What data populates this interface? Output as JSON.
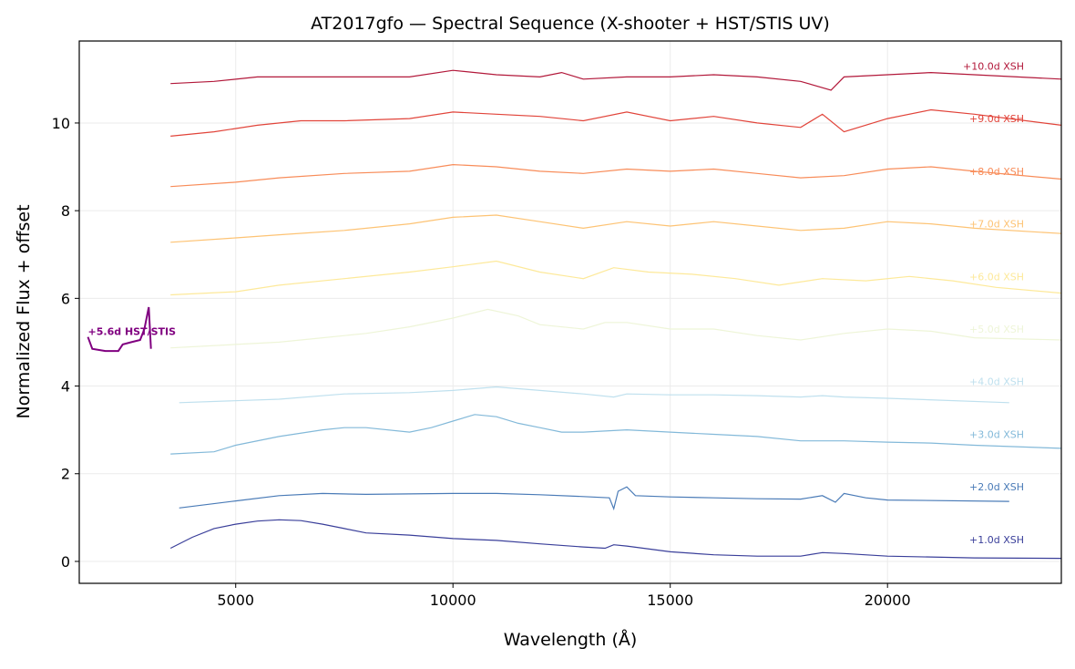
{
  "chart_data": {
    "type": "line",
    "title": "AT2017gfo — Spectral Sequence (X-shooter + HST/STIS UV)",
    "xlabel": "Wavelength (Å)",
    "ylabel": "Normalized Flux + offset",
    "xlim": [
      1400,
      24000
    ],
    "ylim": [
      -0.5,
      11.87
    ],
    "xticks": [
      5000,
      10000,
      15000,
      20000
    ],
    "yticks": [
      0,
      2,
      4,
      6,
      8,
      10
    ],
    "grid": true,
    "legend": "none (inline labels at right)",
    "series": [
      {
        "name": "+1.0d XSH",
        "color": "#3a3f9a",
        "label_y": 0.5,
        "points": [
          [
            3500,
            0.3
          ],
          [
            4000,
            0.55
          ],
          [
            4500,
            0.75
          ],
          [
            5000,
            0.85
          ],
          [
            5500,
            0.92
          ],
          [
            6000,
            0.95
          ],
          [
            6500,
            0.93
          ],
          [
            7000,
            0.85
          ],
          [
            7500,
            0.75
          ],
          [
            8000,
            0.65
          ],
          [
            9000,
            0.6
          ],
          [
            10000,
            0.52
          ],
          [
            11000,
            0.48
          ],
          [
            12000,
            0.4
          ],
          [
            13000,
            0.33
          ],
          [
            13500,
            0.3
          ],
          [
            13700,
            0.38
          ],
          [
            14000,
            0.35
          ],
          [
            15000,
            0.22
          ],
          [
            16000,
            0.15
          ],
          [
            17000,
            0.12
          ],
          [
            18000,
            0.12
          ],
          [
            18500,
            0.2
          ],
          [
            19000,
            0.18
          ],
          [
            20000,
            0.12
          ],
          [
            22000,
            0.08
          ],
          [
            24000,
            0.07
          ]
        ]
      },
      {
        "name": "+2.0d XSH",
        "color": "#4a7bb7",
        "label_y": 1.7,
        "points": [
          [
            3700,
            1.22
          ],
          [
            5000,
            1.38
          ],
          [
            6000,
            1.5
          ],
          [
            7000,
            1.55
          ],
          [
            8000,
            1.53
          ],
          [
            10000,
            1.55
          ],
          [
            11000,
            1.55
          ],
          [
            12000,
            1.52
          ],
          [
            13000,
            1.48
          ],
          [
            13600,
            1.45
          ],
          [
            13700,
            1.2
          ],
          [
            13800,
            1.6
          ],
          [
            14000,
            1.7
          ],
          [
            14200,
            1.5
          ],
          [
            15000,
            1.47
          ],
          [
            16000,
            1.45
          ],
          [
            17000,
            1.43
          ],
          [
            18000,
            1.42
          ],
          [
            18500,
            1.5
          ],
          [
            18800,
            1.35
          ],
          [
            19000,
            1.55
          ],
          [
            19500,
            1.45
          ],
          [
            20000,
            1.4
          ],
          [
            22800,
            1.37
          ]
        ]
      },
      {
        "name": "+3.0d XSH",
        "color": "#83b9d9",
        "label_y": 2.9,
        "points": [
          [
            3500,
            2.45
          ],
          [
            4500,
            2.5
          ],
          [
            5000,
            2.65
          ],
          [
            6000,
            2.85
          ],
          [
            7000,
            3.0
          ],
          [
            7500,
            3.05
          ],
          [
            8000,
            3.05
          ],
          [
            9000,
            2.95
          ],
          [
            9500,
            3.05
          ],
          [
            10000,
            3.2
          ],
          [
            10500,
            3.35
          ],
          [
            11000,
            3.3
          ],
          [
            11500,
            3.15
          ],
          [
            12000,
            3.05
          ],
          [
            12500,
            2.95
          ],
          [
            13000,
            2.95
          ],
          [
            14000,
            3.0
          ],
          [
            15000,
            2.95
          ],
          [
            16000,
            2.9
          ],
          [
            17000,
            2.85
          ],
          [
            18000,
            2.75
          ],
          [
            19000,
            2.75
          ],
          [
            20000,
            2.72
          ],
          [
            21000,
            2.7
          ],
          [
            22000,
            2.65
          ],
          [
            24000,
            2.58
          ]
        ]
      },
      {
        "name": "+4.0d XSH",
        "color": "#bfe0ee",
        "label_y": 4.1,
        "points": [
          [
            3700,
            3.62
          ],
          [
            6000,
            3.7
          ],
          [
            7500,
            3.82
          ],
          [
            9000,
            3.85
          ],
          [
            10000,
            3.9
          ],
          [
            11000,
            3.98
          ],
          [
            12000,
            3.9
          ],
          [
            13000,
            3.82
          ],
          [
            13700,
            3.75
          ],
          [
            14000,
            3.82
          ],
          [
            15000,
            3.8
          ],
          [
            16000,
            3.8
          ],
          [
            17000,
            3.78
          ],
          [
            18000,
            3.75
          ],
          [
            18500,
            3.78
          ],
          [
            19000,
            3.75
          ],
          [
            20000,
            3.72
          ],
          [
            22800,
            3.62
          ]
        ]
      },
      {
        "name": "+5.0d XSH",
        "color": "#eef5d8",
        "label_y": 5.3,
        "points": [
          [
            3500,
            4.87
          ],
          [
            5000,
            4.95
          ],
          [
            6000,
            5.0
          ],
          [
            7000,
            5.1
          ],
          [
            8000,
            5.2
          ],
          [
            9000,
            5.35
          ],
          [
            10000,
            5.55
          ],
          [
            10800,
            5.75
          ],
          [
            11500,
            5.6
          ],
          [
            12000,
            5.4
          ],
          [
            13000,
            5.3
          ],
          [
            13500,
            5.45
          ],
          [
            14000,
            5.45
          ],
          [
            15000,
            5.3
          ],
          [
            16000,
            5.3
          ],
          [
            17000,
            5.15
          ],
          [
            18000,
            5.05
          ],
          [
            19000,
            5.2
          ],
          [
            20000,
            5.3
          ],
          [
            21000,
            5.25
          ],
          [
            22000,
            5.1
          ],
          [
            24000,
            5.05
          ]
        ]
      },
      {
        "name": "+6.0d XSH",
        "color": "#fde99a",
        "label_y": 6.5,
        "points": [
          [
            3500,
            6.08
          ],
          [
            5000,
            6.15
          ],
          [
            6000,
            6.3
          ],
          [
            7500,
            6.45
          ],
          [
            9000,
            6.6
          ],
          [
            10000,
            6.72
          ],
          [
            11000,
            6.85
          ],
          [
            12000,
            6.6
          ],
          [
            13000,
            6.45
          ],
          [
            13700,
            6.7
          ],
          [
            14500,
            6.6
          ],
          [
            15500,
            6.55
          ],
          [
            16500,
            6.45
          ],
          [
            17500,
            6.3
          ],
          [
            18500,
            6.45
          ],
          [
            19500,
            6.4
          ],
          [
            20500,
            6.5
          ],
          [
            21500,
            6.4
          ],
          [
            22500,
            6.25
          ],
          [
            24000,
            6.12
          ]
        ]
      },
      {
        "name": "+7.0d XSH",
        "color": "#fdc374",
        "label_y": 7.7,
        "points": [
          [
            3500,
            7.28
          ],
          [
            5000,
            7.38
          ],
          [
            6000,
            7.45
          ],
          [
            7500,
            7.55
          ],
          [
            9000,
            7.7
          ],
          [
            10000,
            7.85
          ],
          [
            11000,
            7.9
          ],
          [
            12000,
            7.75
          ],
          [
            13000,
            7.6
          ],
          [
            14000,
            7.75
          ],
          [
            15000,
            7.65
          ],
          [
            16000,
            7.75
          ],
          [
            17000,
            7.65
          ],
          [
            18000,
            7.55
          ],
          [
            19000,
            7.6
          ],
          [
            20000,
            7.75
          ],
          [
            21000,
            7.7
          ],
          [
            22000,
            7.6
          ],
          [
            24000,
            7.48
          ]
        ]
      },
      {
        "name": "+8.0d XSH",
        "color": "#f88c59",
        "label_y": 8.9,
        "points": [
          [
            3500,
            8.55
          ],
          [
            5000,
            8.65
          ],
          [
            6000,
            8.75
          ],
          [
            7500,
            8.85
          ],
          [
            9000,
            8.9
          ],
          [
            10000,
            9.05
          ],
          [
            11000,
            9.0
          ],
          [
            12000,
            8.9
          ],
          [
            13000,
            8.85
          ],
          [
            14000,
            8.95
          ],
          [
            15000,
            8.9
          ],
          [
            16000,
            8.95
          ],
          [
            17000,
            8.85
          ],
          [
            18000,
            8.75
          ],
          [
            19000,
            8.8
          ],
          [
            20000,
            8.95
          ],
          [
            21000,
            9.0
          ],
          [
            22000,
            8.9
          ],
          [
            24000,
            8.72
          ]
        ]
      },
      {
        "name": "+9.0d XSH",
        "color": "#e1443a",
        "label_y": 10.1,
        "points": [
          [
            3500,
            9.7
          ],
          [
            4500,
            9.8
          ],
          [
            5500,
            9.95
          ],
          [
            6500,
            10.05
          ],
          [
            7500,
            10.05
          ],
          [
            9000,
            10.1
          ],
          [
            10000,
            10.25
          ],
          [
            11000,
            10.2
          ],
          [
            12000,
            10.15
          ],
          [
            13000,
            10.05
          ],
          [
            14000,
            10.25
          ],
          [
            15000,
            10.05
          ],
          [
            16000,
            10.15
          ],
          [
            17000,
            10.0
          ],
          [
            18000,
            9.9
          ],
          [
            18500,
            10.2
          ],
          [
            19000,
            9.8
          ],
          [
            20000,
            10.1
          ],
          [
            21000,
            10.3
          ],
          [
            22000,
            10.2
          ],
          [
            24000,
            9.95
          ]
        ]
      },
      {
        "name": "+10.0d XSH",
        "color": "#b2183a",
        "label_y": 11.3,
        "points": [
          [
            3500,
            10.9
          ],
          [
            4500,
            10.95
          ],
          [
            5500,
            11.05
          ],
          [
            7000,
            11.05
          ],
          [
            9000,
            11.05
          ],
          [
            10000,
            11.2
          ],
          [
            11000,
            11.1
          ],
          [
            12000,
            11.05
          ],
          [
            12500,
            11.15
          ],
          [
            13000,
            11.0
          ],
          [
            14000,
            11.05
          ],
          [
            15000,
            11.05
          ],
          [
            16000,
            11.1
          ],
          [
            17000,
            11.05
          ],
          [
            18000,
            10.95
          ],
          [
            18700,
            10.75
          ],
          [
            19000,
            11.05
          ],
          [
            20000,
            11.1
          ],
          [
            21000,
            11.15
          ],
          [
            22000,
            11.1
          ],
          [
            24000,
            11.0
          ]
        ]
      },
      {
        "name": "+5.6d HST/STIS",
        "color": "#800080",
        "label_y": 5.25,
        "label_left": true,
        "points": [
          [
            1600,
            5.12
          ],
          [
            1700,
            4.85
          ],
          [
            2000,
            4.8
          ],
          [
            2300,
            4.8
          ],
          [
            2400,
            4.95
          ],
          [
            2600,
            5.0
          ],
          [
            2800,
            5.05
          ],
          [
            2900,
            5.3
          ],
          [
            3000,
            5.8
          ],
          [
            3050,
            4.85
          ]
        ]
      }
    ]
  }
}
